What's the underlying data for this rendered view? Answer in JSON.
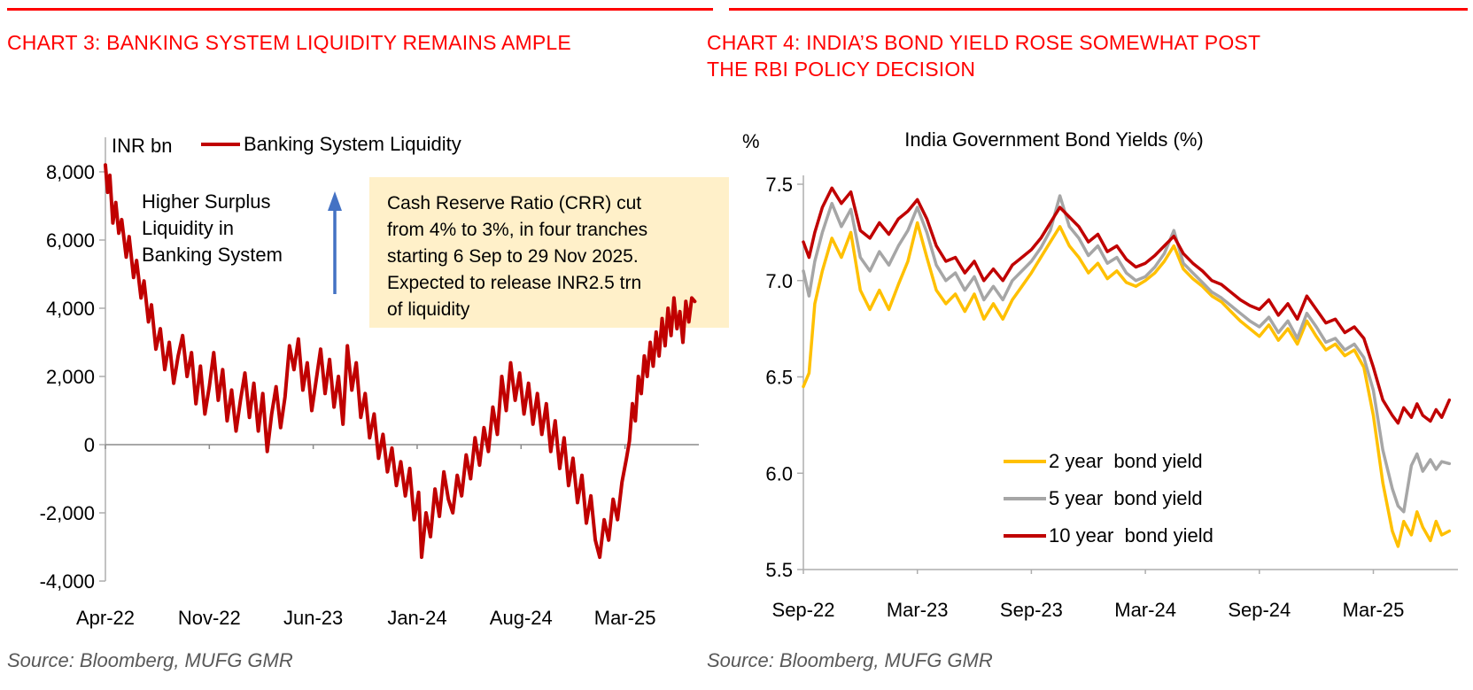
{
  "colors": {
    "heading_red": "#FF0000",
    "line_dark_red": "#C00000",
    "line_gray": "#A6A6A6",
    "line_gold": "#FFC000",
    "callout_bg": "#FFF0C9",
    "arrow_blue": "#4472C4",
    "source_gray": "#595959",
    "axis_gray": "#ADADAD",
    "zero_line_gray": "#8C8C8C"
  },
  "left_panel": {
    "heading": "CHART 3: BANKING SYSTEM LIQUIDITY REMAINS AMPLE",
    "axis_unit_label": "INR bn",
    "legend": [
      {
        "label": "Banking System Liquidity",
        "color": "#C00000"
      }
    ],
    "annotation": "Higher Surplus\nLiquidity in\nBanking System",
    "callout_text": "Cash Reserve Ratio (CRR) cut\nfrom 4% to 3%, in four tranches\nstarting 6 Sep to 29 Nov 2025.\nExpected to release INR2.5 trn\nof liquidity",
    "source": "Source: Bloomberg, MUFG GMR",
    "chart_data": {
      "type": "line",
      "title": "",
      "ylabel": "INR bn",
      "xlabel": "",
      "x_unit": "months since Apr-2022",
      "xlim": [
        0,
        39.7
      ],
      "ylim": [
        -4000,
        9000
      ],
      "grid": "zero-line only",
      "x_tick_positions": [
        0,
        7,
        14,
        21,
        28,
        35
      ],
      "x_tick_labels": [
        "Apr-22",
        "Nov-22",
        "Jun-23",
        "Jan-24",
        "Aug-24",
        "Mar-25"
      ],
      "y_tick_values": [
        8000,
        6000,
        4000,
        2000,
        0,
        -2000,
        -4000
      ],
      "y_tick_labels": [
        "8,000",
        "6,000",
        "4,000",
        "2,000",
        "0",
        "-2,000",
        "-4,000"
      ],
      "series": [
        {
          "name": "Banking System Liquidity",
          "color": "#C00000",
          "x": [
            0,
            0.15,
            0.3,
            0.5,
            0.7,
            0.9,
            1.1,
            1.4,
            1.6,
            1.9,
            2.1,
            2.4,
            2.6,
            2.9,
            3.1,
            3.4,
            3.7,
            4.0,
            4.3,
            4.6,
            4.9,
            5.2,
            5.5,
            5.8,
            6.1,
            6.4,
            6.7,
            7.0,
            7.3,
            7.6,
            7.9,
            8.2,
            8.5,
            8.8,
            9.1,
            9.4,
            9.7,
            10.0,
            10.3,
            10.6,
            10.9,
            11.2,
            11.5,
            11.8,
            12.1,
            12.4,
            12.7,
            13.0,
            13.3,
            13.6,
            13.9,
            14.2,
            14.5,
            14.8,
            15.1,
            15.4,
            15.7,
            16.0,
            16.3,
            16.6,
            16.9,
            17.2,
            17.5,
            17.8,
            18.1,
            18.4,
            18.7,
            19.0,
            19.3,
            19.6,
            19.9,
            20.2,
            20.5,
            20.8,
            21.1,
            21.3,
            21.6,
            21.9,
            22.2,
            22.5,
            22.8,
            23.1,
            23.4,
            23.7,
            24.0,
            24.3,
            24.6,
            24.9,
            25.2,
            25.5,
            25.8,
            26.1,
            26.4,
            26.7,
            27.0,
            27.3,
            27.6,
            27.9,
            28.2,
            28.5,
            28.8,
            29.1,
            29.4,
            29.7,
            30.0,
            30.3,
            30.6,
            30.9,
            31.2,
            31.5,
            31.8,
            32.1,
            32.4,
            32.7,
            33.0,
            33.3,
            33.6,
            33.9,
            34.2,
            34.5,
            34.8,
            35.1,
            35.3,
            35.5,
            35.7,
            35.9,
            36.1,
            36.3,
            36.5,
            36.7,
            36.9,
            37.1,
            37.3,
            37.5,
            37.7,
            37.9,
            38.1,
            38.3,
            38.5,
            38.7,
            38.9,
            39.1,
            39.3,
            39.5,
            39.7
          ],
          "y": [
            8200,
            7400,
            7900,
            6500,
            7100,
            6200,
            6600,
            5500,
            6100,
            4900,
            5400,
            4300,
            4800,
            3600,
            4100,
            2800,
            3400,
            2200,
            3000,
            1800,
            2600,
            3200,
            2000,
            2700,
            1200,
            2300,
            900,
            1700,
            2700,
            1300,
            2200,
            700,
            1600,
            400,
            1300,
            2100,
            800,
            1800,
            400,
            1500,
            -200,
            900,
            1700,
            500,
            1400,
            2900,
            2200,
            3100,
            1600,
            2400,
            1000,
            1900,
            2800,
            1500,
            2500,
            1100,
            2000,
            600,
            2900,
            1600,
            2400,
            800,
            1500,
            200,
            900,
            -400,
            300,
            -800,
            -100,
            -1200,
            -500,
            -1500,
            -700,
            -2200,
            -1400,
            -3300,
            -2000,
            -2700,
            -1300,
            -2100,
            -800,
            -1600,
            -2000,
            -900,
            -1500,
            -300,
            -1000,
            200,
            -600,
            500,
            -200,
            1100,
            300,
            2000,
            1000,
            2400,
            1300,
            2100,
            900,
            1800,
            600,
            1500,
            300,
            1200,
            -200,
            700,
            -700,
            200,
            -1200,
            -400,
            -1700,
            -900,
            -2300,
            -1500,
            -2800,
            -3300,
            -2200,
            -2800,
            -1600,
            -2200,
            -1100,
            -400,
            100,
            1200,
            700,
            2000,
            1500,
            2600,
            2000,
            3000,
            2300,
            3300,
            2600,
            3700,
            2900,
            4000,
            3200,
            4300,
            3400,
            3900,
            3000,
            4200,
            3600,
            4300,
            4200
          ]
        }
      ]
    }
  },
  "right_panel": {
    "heading": "CHART 4: INDIA’S BOND YIELD ROSE SOMEWHAT POST\nTHE RBI POLICY DECISION",
    "axis_unit_label": "%",
    "legend": [
      {
        "label": "2 year  bond yield",
        "color": "#FFC000"
      },
      {
        "label": "5 year  bond yield",
        "color": "#A6A6A6"
      },
      {
        "label": "10 year  bond yield",
        "color": "#C00000"
      }
    ],
    "source": "Source: Bloomberg, MUFG GMR",
    "chart_data": {
      "type": "line",
      "title": "India Government Bond Yields (%)",
      "ylabel": "%",
      "xlabel": "",
      "x_unit": "months since Sep-2022",
      "xlim": [
        0,
        34
      ],
      "ylim": [
        5.5,
        7.5
      ],
      "grid": "off",
      "legend_position": "inside lower right",
      "x_tick_positions": [
        0,
        6,
        12,
        18,
        24,
        30
      ],
      "x_tick_labels": [
        "Sep-22",
        "Mar-23",
        "Sep-23",
        "Mar-24",
        "Sep-24",
        "Mar-25"
      ],
      "y_tick_values": [
        7.5,
        7.0,
        6.5,
        6.0,
        5.5
      ],
      "y_tick_labels": [
        "7.5",
        "7.0",
        "6.5",
        "6.0",
        "5.5"
      ],
      "x_shared": [
        0,
        0.3,
        0.6,
        1,
        1.5,
        2,
        2.5,
        3,
        3.5,
        4,
        4.5,
        5,
        5.5,
        6,
        6.5,
        7,
        7.5,
        8,
        8.5,
        9,
        9.5,
        10,
        10.5,
        11,
        11.5,
        12,
        12.5,
        13,
        13.5,
        14,
        14.5,
        15,
        15.5,
        16,
        16.5,
        17,
        17.5,
        18,
        18.5,
        19,
        19.5,
        20,
        20.5,
        21,
        21.5,
        22,
        22.5,
        23,
        23.5,
        24,
        24.5,
        25,
        25.5,
        26,
        26.5,
        27,
        27.5,
        28,
        28.5,
        29,
        29.5,
        30,
        30.5,
        31,
        31.3,
        31.6,
        32,
        32.3,
        32.6,
        33,
        33.3,
        33.6,
        34
      ],
      "series": [
        {
          "name": "2 year  bond yield",
          "color": "#FFC000",
          "y": [
            6.45,
            6.52,
            6.88,
            7.05,
            7.22,
            7.12,
            7.25,
            6.95,
            6.85,
            6.95,
            6.85,
            6.98,
            7.1,
            7.3,
            7.12,
            6.95,
            6.88,
            6.93,
            6.84,
            6.93,
            6.8,
            6.88,
            6.8,
            6.9,
            6.97,
            7.04,
            7.12,
            7.2,
            7.28,
            7.18,
            7.12,
            7.04,
            7.09,
            7.01,
            7.05,
            6.99,
            6.97,
            7.0,
            7.04,
            7.1,
            7.18,
            7.06,
            7.01,
            6.97,
            6.92,
            6.89,
            6.84,
            6.79,
            6.75,
            6.71,
            6.77,
            6.69,
            6.75,
            6.67,
            6.79,
            6.71,
            6.64,
            6.67,
            6.61,
            6.64,
            6.55,
            6.3,
            5.95,
            5.7,
            5.62,
            5.75,
            5.68,
            5.8,
            5.72,
            5.65,
            5.75,
            5.68,
            5.7
          ]
        },
        {
          "name": "5 year  bond yield",
          "color": "#A6A6A6",
          "y": [
            7.05,
            6.92,
            7.1,
            7.25,
            7.4,
            7.28,
            7.37,
            7.12,
            7.05,
            7.15,
            7.08,
            7.18,
            7.26,
            7.38,
            7.25,
            7.08,
            7.0,
            7.04,
            6.95,
            7.02,
            6.9,
            6.97,
            6.9,
            7.0,
            7.05,
            7.1,
            7.17,
            7.26,
            7.44,
            7.28,
            7.22,
            7.13,
            7.18,
            7.09,
            7.12,
            7.04,
            7.0,
            7.02,
            7.07,
            7.14,
            7.26,
            7.09,
            7.04,
            6.99,
            6.94,
            6.91,
            6.87,
            6.83,
            6.79,
            6.76,
            6.81,
            6.73,
            6.79,
            6.7,
            6.83,
            6.76,
            6.68,
            6.7,
            6.64,
            6.67,
            6.6,
            6.43,
            6.12,
            5.92,
            5.83,
            5.8,
            6.04,
            6.1,
            6.01,
            6.07,
            6.02,
            6.06,
            6.05
          ]
        },
        {
          "name": "10 year  bond yield",
          "color": "#C00000",
          "y": [
            7.2,
            7.12,
            7.25,
            7.38,
            7.48,
            7.4,
            7.46,
            7.26,
            7.22,
            7.3,
            7.24,
            7.32,
            7.36,
            7.42,
            7.32,
            7.18,
            7.1,
            7.12,
            7.04,
            7.1,
            7.0,
            7.06,
            7.0,
            7.08,
            7.12,
            7.16,
            7.22,
            7.3,
            7.38,
            7.33,
            7.28,
            7.2,
            7.24,
            7.15,
            7.18,
            7.11,
            7.07,
            7.09,
            7.13,
            7.18,
            7.23,
            7.14,
            7.09,
            7.05,
            7.0,
            6.98,
            6.94,
            6.9,
            6.87,
            6.85,
            6.9,
            6.82,
            6.88,
            6.8,
            6.92,
            6.85,
            6.78,
            6.8,
            6.73,
            6.76,
            6.7,
            6.55,
            6.38,
            6.3,
            6.26,
            6.34,
            6.29,
            6.36,
            6.3,
            6.27,
            6.33,
            6.29,
            6.38
          ]
        }
      ]
    }
  }
}
